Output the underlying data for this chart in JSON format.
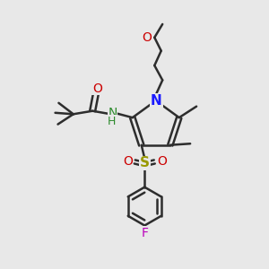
{
  "bg_color": "#e8e8e8",
  "bond_color": "#2d2d2d",
  "bond_width": 1.8,
  "fig_size": [
    3.0,
    3.0
  ],
  "dpi": 100,
  "xlim": [
    0,
    10
  ],
  "ylim": [
    0,
    10
  ],
  "colors": {
    "N": "#1a1aff",
    "O": "#cc0000",
    "S": "#999900",
    "F": "#bb00bb",
    "NH": "#2d8a2d",
    "bond": "#2d2d2d"
  }
}
